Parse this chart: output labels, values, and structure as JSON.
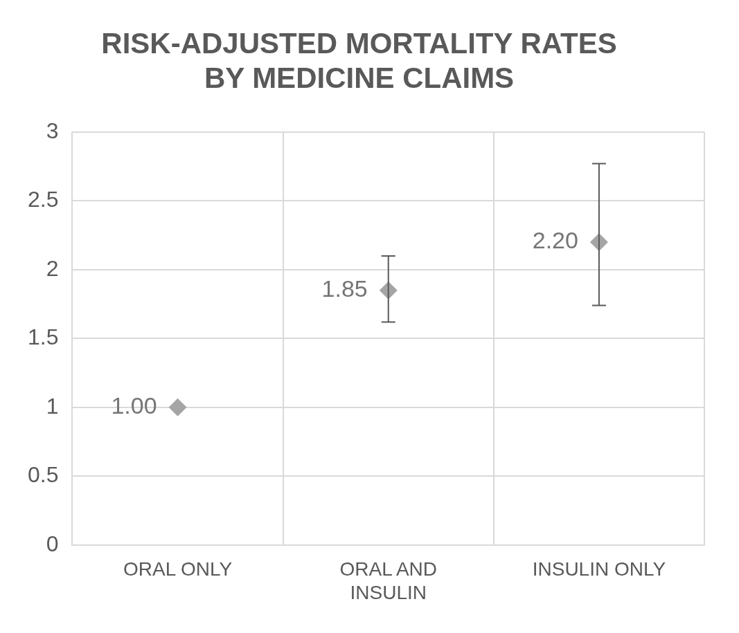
{
  "chart_data": {
    "type": "scatter",
    "title": "RISK-ADJUSTED MORTALITY RATES BY MEDICINE CLAIMS",
    "categories": [
      "ORAL ONLY",
      "ORAL AND INSULIN",
      "INSULIN ONLY"
    ],
    "values": [
      1.0,
      1.85,
      2.2
    ],
    "errors": [
      null,
      [
        1.62,
        2.1
      ],
      [
        1.74,
        2.77
      ]
    ],
    "value_labels": [
      "1.00",
      "1.85",
      "2.20"
    ],
    "color": "#a5a5a5",
    "marker": "diamond",
    "ylim": [
      0,
      3
    ],
    "yticks": [
      0,
      0.5,
      1,
      1.5,
      2,
      2.5,
      3
    ],
    "grid": true,
    "legend": false
  }
}
